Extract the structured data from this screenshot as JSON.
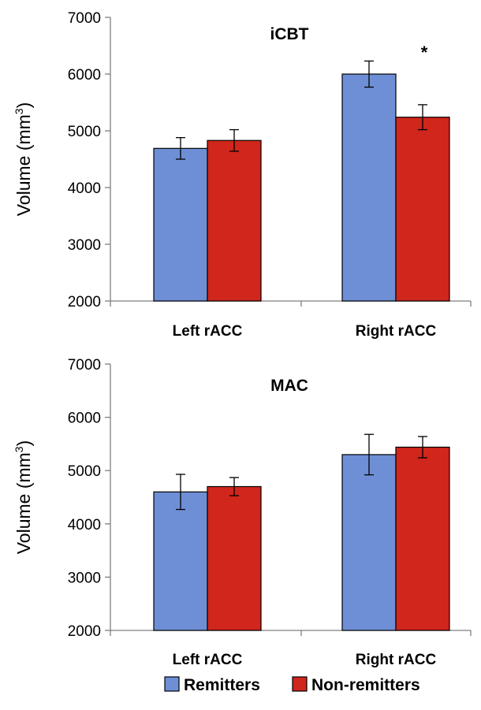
{
  "chart_data": [
    {
      "type": "bar",
      "title": "iCBT",
      "ylabel": "Volume (mm",
      "ylabel_superscript": "3",
      "ylabel_close": ")",
      "ylim": [
        2000,
        7000
      ],
      "yticks": [
        2000,
        3000,
        4000,
        5000,
        6000,
        7000
      ],
      "categories": [
        "Left rACC",
        "Right rACC"
      ],
      "series": [
        {
          "name": "Remitters",
          "color": "#6e8fd6",
          "values": [
            4690,
            6000
          ],
          "errors": [
            190,
            230
          ]
        },
        {
          "name": "Non-remitters",
          "color": "#d0261c",
          "values": [
            4830,
            5240
          ],
          "errors": [
            190,
            220
          ]
        }
      ],
      "annotations": [
        {
          "text": "*",
          "category": "Right rACC"
        }
      ]
    },
    {
      "type": "bar",
      "title": "MAC",
      "ylabel": "Volume (mm",
      "ylabel_superscript": "3",
      "ylabel_close": ")",
      "ylim": [
        2000,
        7000
      ],
      "yticks": [
        2000,
        3000,
        4000,
        5000,
        6000,
        7000
      ],
      "categories": [
        "Left rACC",
        "Right rACC"
      ],
      "series": [
        {
          "name": "Remitters",
          "color": "#6e8fd6",
          "values": [
            4600,
            5300
          ],
          "errors": [
            330,
            380
          ]
        },
        {
          "name": "Non-remitters",
          "color": "#d0261c",
          "values": [
            4700,
            5440
          ],
          "errors": [
            170,
            200
          ]
        }
      ],
      "annotations": []
    }
  ],
  "legend": {
    "position": "bottom-center",
    "items": [
      {
        "label": "Remitters",
        "color": "#6e8fd6"
      },
      {
        "label": "Non-remitters",
        "color": "#d0261c"
      }
    ]
  }
}
